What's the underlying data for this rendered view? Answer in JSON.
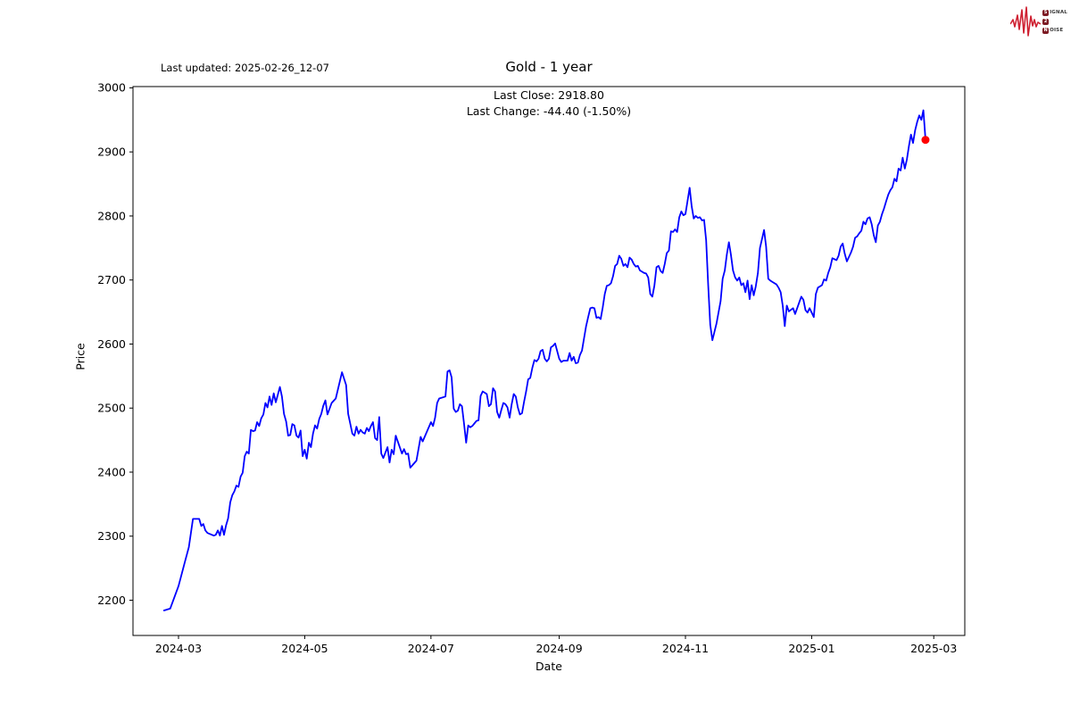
{
  "header": {
    "last_updated": "Last updated: 2025-02-26_12-07"
  },
  "logo": {
    "name": "signal-2-noise",
    "waveform_color": "#cf2233",
    "badge_color": "#7d1b24",
    "rows": [
      {
        "badge": "S",
        "rest": "IGNAL"
      },
      {
        "badge": "2",
        "rest": ""
      },
      {
        "badge": "N",
        "rest": "OISE"
      }
    ]
  },
  "chart_data": {
    "type": "line",
    "title": "Gold - 1 year",
    "annotation_last_close": "Last Close: 2918.80",
    "annotation_last_change": "Last Change: -44.40 (-1.50%)",
    "last_close": 2918.8,
    "last_change": -44.4,
    "last_change_pct": "-1.50%",
    "xlabel": "Date",
    "ylabel": "Price",
    "grid": false,
    "legend": "none",
    "line_color": "#0000ff",
    "marker_color": "#ff0000",
    "ylim": [
      2145,
      3002
    ],
    "xlim": [
      "2024-02-08",
      "2025-03-16"
    ],
    "y_ticks": [
      2200,
      2300,
      2400,
      2500,
      2600,
      2700,
      2800,
      2900,
      3000
    ],
    "x_ticks": [
      {
        "date": "2024-03-01",
        "label": "2024-03"
      },
      {
        "date": "2024-05-01",
        "label": "2024-05"
      },
      {
        "date": "2024-07-01",
        "label": "2024-07"
      },
      {
        "date": "2024-09-01",
        "label": "2024-09"
      },
      {
        "date": "2024-11-01",
        "label": "2024-11"
      },
      {
        "date": "2025-01-01",
        "label": "2025-01"
      },
      {
        "date": "2025-03-01",
        "label": "2025-03"
      }
    ],
    "series_name": "Gold",
    "last_point_marker": {
      "date": "2025-02-25",
      "price": 2918.8
    },
    "points": [
      [
        "2024-02-23",
        2184
      ],
      [
        "2024-02-26",
        2187
      ],
      [
        "2024-03-01",
        2222
      ],
      [
        "2024-03-04",
        2259
      ],
      [
        "2024-03-06",
        2283
      ],
      [
        "2024-03-08",
        2327
      ],
      [
        "2024-03-11",
        2327
      ],
      [
        "2024-03-12",
        2316
      ],
      [
        "2024-03-13",
        2319
      ],
      [
        "2024-03-14",
        2309
      ],
      [
        "2024-03-15",
        2305
      ],
      [
        "2024-03-18",
        2301
      ],
      [
        "2024-03-19",
        2302
      ],
      [
        "2024-03-20",
        2309
      ],
      [
        "2024-03-21",
        2301
      ],
      [
        "2024-03-22",
        2316
      ],
      [
        "2024-03-23",
        2302
      ],
      [
        "2024-03-24",
        2317
      ],
      [
        "2024-03-25",
        2328
      ],
      [
        "2024-03-26",
        2353
      ],
      [
        "2024-03-27",
        2364
      ],
      [
        "2024-03-28",
        2370
      ],
      [
        "2024-03-29",
        2379
      ],
      [
        "2024-03-30",
        2377
      ],
      [
        "2024-03-31",
        2393
      ],
      [
        "2024-04-01",
        2399
      ],
      [
        "2024-04-02",
        2425
      ],
      [
        "2024-04-03",
        2432
      ],
      [
        "2024-04-04",
        2429
      ],
      [
        "2024-04-05",
        2466
      ],
      [
        "2024-04-06",
        2464
      ],
      [
        "2024-04-07",
        2465
      ],
      [
        "2024-04-08",
        2478
      ],
      [
        "2024-04-09",
        2472
      ],
      [
        "2024-04-10",
        2484
      ],
      [
        "2024-04-11",
        2490
      ],
      [
        "2024-04-12",
        2508
      ],
      [
        "2024-04-13",
        2501
      ],
      [
        "2024-04-14",
        2518
      ],
      [
        "2024-04-15",
        2505
      ],
      [
        "2024-04-16",
        2523
      ],
      [
        "2024-04-17",
        2509
      ],
      [
        "2024-04-19",
        2533
      ],
      [
        "2024-04-20",
        2518
      ],
      [
        "2024-04-21",
        2491
      ],
      [
        "2024-04-22",
        2479
      ],
      [
        "2024-04-23",
        2457
      ],
      [
        "2024-04-24",
        2458
      ],
      [
        "2024-04-25",
        2475
      ],
      [
        "2024-04-26",
        2473
      ],
      [
        "2024-04-27",
        2457
      ],
      [
        "2024-04-28",
        2454
      ],
      [
        "2024-04-29",
        2465
      ],
      [
        "2024-04-30",
        2425
      ],
      [
        "2024-05-01",
        2435
      ],
      [
        "2024-05-02",
        2421
      ],
      [
        "2024-05-03",
        2446
      ],
      [
        "2024-05-04",
        2439
      ],
      [
        "2024-05-05",
        2460
      ],
      [
        "2024-05-06",
        2473
      ],
      [
        "2024-05-07",
        2468
      ],
      [
        "2024-05-08",
        2483
      ],
      [
        "2024-05-09",
        2491
      ],
      [
        "2024-05-10",
        2504
      ],
      [
        "2024-05-11",
        2512
      ],
      [
        "2024-05-12",
        2490
      ],
      [
        "2024-05-14",
        2508
      ],
      [
        "2024-05-16",
        2515
      ],
      [
        "2024-05-19",
        2556
      ],
      [
        "2024-05-21",
        2536
      ],
      [
        "2024-05-22",
        2491
      ],
      [
        "2024-05-23",
        2476
      ],
      [
        "2024-05-24",
        2460
      ],
      [
        "2024-05-25",
        2457
      ],
      [
        "2024-05-26",
        2471
      ],
      [
        "2024-05-27",
        2460
      ],
      [
        "2024-05-28",
        2466
      ],
      [
        "2024-05-29",
        2462
      ],
      [
        "2024-05-30",
        2460
      ],
      [
        "2024-05-31",
        2469
      ],
      [
        "2024-06-01",
        2464
      ],
      [
        "2024-06-02",
        2472
      ],
      [
        "2024-06-03",
        2478
      ],
      [
        "2024-06-04",
        2453
      ],
      [
        "2024-06-05",
        2450
      ],
      [
        "2024-06-06",
        2486
      ],
      [
        "2024-06-07",
        2429
      ],
      [
        "2024-06-08",
        2422
      ],
      [
        "2024-06-10",
        2439
      ],
      [
        "2024-06-11",
        2415
      ],
      [
        "2024-06-12",
        2435
      ],
      [
        "2024-06-13",
        2428
      ],
      [
        "2024-06-14",
        2457
      ],
      [
        "2024-06-17",
        2429
      ],
      [
        "2024-06-18",
        2436
      ],
      [
        "2024-06-19",
        2428
      ],
      [
        "2024-06-20",
        2429
      ],
      [
        "2024-06-21",
        2407
      ],
      [
        "2024-06-24",
        2418
      ],
      [
        "2024-06-25",
        2436
      ],
      [
        "2024-06-26",
        2455
      ],
      [
        "2024-06-27",
        2448
      ],
      [
        "2024-07-01",
        2478
      ],
      [
        "2024-07-02",
        2472
      ],
      [
        "2024-07-03",
        2485
      ],
      [
        "2024-07-04",
        2508
      ],
      [
        "2024-07-05",
        2515
      ],
      [
        "2024-07-08",
        2518
      ],
      [
        "2024-07-09",
        2557
      ],
      [
        "2024-07-10",
        2559
      ],
      [
        "2024-07-11",
        2548
      ],
      [
        "2024-07-12",
        2499
      ],
      [
        "2024-07-13",
        2494
      ],
      [
        "2024-07-14",
        2496
      ],
      [
        "2024-07-15",
        2506
      ],
      [
        "2024-07-16",
        2503
      ],
      [
        "2024-07-17",
        2476
      ],
      [
        "2024-07-18",
        2446
      ],
      [
        "2024-07-19",
        2473
      ],
      [
        "2024-07-20",
        2470
      ],
      [
        "2024-07-21",
        2472
      ],
      [
        "2024-07-22",
        2476
      ],
      [
        "2024-07-23",
        2480
      ],
      [
        "2024-07-24",
        2481
      ],
      [
        "2024-07-25",
        2519
      ],
      [
        "2024-07-26",
        2526
      ],
      [
        "2024-07-27",
        2524
      ],
      [
        "2024-07-28",
        2522
      ],
      [
        "2024-07-29",
        2503
      ],
      [
        "2024-07-30",
        2506
      ],
      [
        "2024-07-31",
        2531
      ],
      [
        "2024-08-01",
        2526
      ],
      [
        "2024-08-02",
        2494
      ],
      [
        "2024-08-03",
        2485
      ],
      [
        "2024-08-04",
        2497
      ],
      [
        "2024-08-05",
        2508
      ],
      [
        "2024-08-06",
        2506
      ],
      [
        "2024-08-07",
        2501
      ],
      [
        "2024-08-08",
        2485
      ],
      [
        "2024-08-09",
        2506
      ],
      [
        "2024-08-10",
        2522
      ],
      [
        "2024-08-11",
        2518
      ],
      [
        "2024-08-12",
        2501
      ],
      [
        "2024-08-13",
        2490
      ],
      [
        "2024-08-14",
        2492
      ],
      [
        "2024-08-15",
        2510
      ],
      [
        "2024-08-16",
        2526
      ],
      [
        "2024-08-17",
        2545
      ],
      [
        "2024-08-18",
        2547
      ],
      [
        "2024-08-19",
        2563
      ],
      [
        "2024-08-20",
        2575
      ],
      [
        "2024-08-21",
        2573
      ],
      [
        "2024-08-22",
        2577
      ],
      [
        "2024-08-23",
        2589
      ],
      [
        "2024-08-24",
        2591
      ],
      [
        "2024-08-25",
        2577
      ],
      [
        "2024-08-26",
        2573
      ],
      [
        "2024-08-27",
        2577
      ],
      [
        "2024-08-28",
        2595
      ],
      [
        "2024-08-29",
        2597
      ],
      [
        "2024-08-30",
        2601
      ],
      [
        "2024-09-01",
        2577
      ],
      [
        "2024-09-02",
        2572
      ],
      [
        "2024-09-03",
        2574
      ],
      [
        "2024-09-04",
        2574
      ],
      [
        "2024-09-05",
        2574
      ],
      [
        "2024-09-06",
        2586
      ],
      [
        "2024-09-07",
        2574
      ],
      [
        "2024-09-08",
        2580
      ],
      [
        "2024-09-09",
        2570
      ],
      [
        "2024-09-10",
        2571
      ],
      [
        "2024-09-11",
        2583
      ],
      [
        "2024-09-12",
        2590
      ],
      [
        "2024-09-13",
        2609
      ],
      [
        "2024-09-14",
        2628
      ],
      [
        "2024-09-15",
        2642
      ],
      [
        "2024-09-16",
        2656
      ],
      [
        "2024-09-17",
        2657
      ],
      [
        "2024-09-18",
        2656
      ],
      [
        "2024-09-19",
        2641
      ],
      [
        "2024-09-20",
        2642
      ],
      [
        "2024-09-21",
        2639
      ],
      [
        "2024-09-22",
        2657
      ],
      [
        "2024-09-23",
        2678
      ],
      [
        "2024-09-24",
        2691
      ],
      [
        "2024-09-25",
        2692
      ],
      [
        "2024-09-26",
        2695
      ],
      [
        "2024-09-27",
        2706
      ],
      [
        "2024-09-28",
        2722
      ],
      [
        "2024-09-29",
        2725
      ],
      [
        "2024-09-30",
        2738
      ],
      [
        "2024-10-01",
        2733
      ],
      [
        "2024-10-02",
        2722
      ],
      [
        "2024-10-03",
        2725
      ],
      [
        "2024-10-04",
        2720
      ],
      [
        "2024-10-05",
        2735
      ],
      [
        "2024-10-06",
        2732
      ],
      [
        "2024-10-07",
        2725
      ],
      [
        "2024-10-08",
        2721
      ],
      [
        "2024-10-09",
        2722
      ],
      [
        "2024-10-10",
        2715
      ],
      [
        "2024-10-11",
        2713
      ],
      [
        "2024-10-12",
        2711
      ],
      [
        "2024-10-13",
        2710
      ],
      [
        "2024-10-14",
        2704
      ],
      [
        "2024-10-15",
        2678
      ],
      [
        "2024-10-16",
        2674
      ],
      [
        "2024-10-17",
        2691
      ],
      [
        "2024-10-18",
        2720
      ],
      [
        "2024-10-19",
        2722
      ],
      [
        "2024-10-20",
        2714
      ],
      [
        "2024-10-21",
        2711
      ],
      [
        "2024-10-22",
        2725
      ],
      [
        "2024-10-23",
        2742
      ],
      [
        "2024-10-24",
        2746
      ],
      [
        "2024-10-25",
        2776
      ],
      [
        "2024-10-26",
        2775
      ],
      [
        "2024-10-27",
        2779
      ],
      [
        "2024-10-28",
        2775
      ],
      [
        "2024-10-29",
        2798
      ],
      [
        "2024-10-30",
        2807
      ],
      [
        "2024-10-31",
        2801
      ],
      [
        "2024-11-01",
        2803
      ],
      [
        "2024-11-02",
        2823
      ],
      [
        "2024-11-03",
        2844
      ],
      [
        "2024-11-04",
        2815
      ],
      [
        "2024-11-05",
        2796
      ],
      [
        "2024-11-06",
        2800
      ],
      [
        "2024-11-07",
        2797
      ],
      [
        "2024-11-08",
        2798
      ],
      [
        "2024-11-09",
        2793
      ],
      [
        "2024-11-10",
        2794
      ],
      [
        "2024-11-11",
        2762
      ],
      [
        "2024-11-12",
        2692
      ],
      [
        "2024-11-13",
        2630
      ],
      [
        "2024-11-14",
        2606
      ],
      [
        "2024-11-15",
        2619
      ],
      [
        "2024-11-16",
        2632
      ],
      [
        "2024-11-18",
        2667
      ],
      [
        "2024-11-19",
        2702
      ],
      [
        "2024-11-20",
        2715
      ],
      [
        "2024-11-21",
        2740
      ],
      [
        "2024-11-22",
        2759
      ],
      [
        "2024-11-23",
        2739
      ],
      [
        "2024-11-24",
        2715
      ],
      [
        "2024-11-25",
        2704
      ],
      [
        "2024-11-26",
        2699
      ],
      [
        "2024-11-27",
        2704
      ],
      [
        "2024-11-28",
        2692
      ],
      [
        "2024-11-29",
        2695
      ],
      [
        "2024-11-30",
        2681
      ],
      [
        "2024-12-01",
        2699
      ],
      [
        "2024-12-02",
        2670
      ],
      [
        "2024-12-03",
        2692
      ],
      [
        "2024-12-04",
        2676
      ],
      [
        "2024-12-05",
        2690
      ],
      [
        "2024-12-06",
        2711
      ],
      [
        "2024-12-07",
        2750
      ],
      [
        "2024-12-09",
        2778
      ],
      [
        "2024-12-10",
        2752
      ],
      [
        "2024-12-11",
        2702
      ],
      [
        "2024-12-12",
        2699
      ],
      [
        "2024-12-13",
        2697
      ],
      [
        "2024-12-15",
        2693
      ],
      [
        "2024-12-16",
        2688
      ],
      [
        "2024-12-17",
        2681
      ],
      [
        "2024-12-18",
        2660
      ],
      [
        "2024-12-19",
        2628
      ],
      [
        "2024-12-20",
        2660
      ],
      [
        "2024-12-21",
        2651
      ],
      [
        "2024-12-23",
        2656
      ],
      [
        "2024-12-24",
        2647
      ],
      [
        "2024-12-26",
        2665
      ],
      [
        "2024-12-27",
        2674
      ],
      [
        "2024-12-28",
        2669
      ],
      [
        "2024-12-29",
        2653
      ],
      [
        "2024-12-30",
        2649
      ],
      [
        "2024-12-31",
        2656
      ],
      [
        "2025-01-02",
        2642
      ],
      [
        "2025-01-03",
        2678
      ],
      [
        "2025-01-04",
        2688
      ],
      [
        "2025-01-06",
        2692
      ],
      [
        "2025-01-07",
        2701
      ],
      [
        "2025-01-08",
        2699
      ],
      [
        "2025-01-09",
        2711
      ],
      [
        "2025-01-10",
        2720
      ],
      [
        "2025-01-11",
        2734
      ],
      [
        "2025-01-13",
        2731
      ],
      [
        "2025-01-14",
        2738
      ],
      [
        "2025-01-15",
        2752
      ],
      [
        "2025-01-16",
        2757
      ],
      [
        "2025-01-17",
        2741
      ],
      [
        "2025-01-18",
        2729
      ],
      [
        "2025-01-20",
        2743
      ],
      [
        "2025-01-21",
        2752
      ],
      [
        "2025-01-22",
        2766
      ],
      [
        "2025-01-23",
        2768
      ],
      [
        "2025-01-24",
        2773
      ],
      [
        "2025-01-25",
        2777
      ],
      [
        "2025-01-26",
        2791
      ],
      [
        "2025-01-27",
        2787
      ],
      [
        "2025-01-28",
        2796
      ],
      [
        "2025-01-29",
        2798
      ],
      [
        "2025-01-30",
        2787
      ],
      [
        "2025-01-31",
        2770
      ],
      [
        "2025-02-01",
        2759
      ],
      [
        "2025-02-02",
        2785
      ],
      [
        "2025-02-03",
        2791
      ],
      [
        "2025-02-04",
        2803
      ],
      [
        "2025-02-05",
        2812
      ],
      [
        "2025-02-06",
        2823
      ],
      [
        "2025-02-07",
        2833
      ],
      [
        "2025-02-08",
        2840
      ],
      [
        "2025-02-09",
        2845
      ],
      [
        "2025-02-10",
        2858
      ],
      [
        "2025-02-11",
        2854
      ],
      [
        "2025-02-12",
        2874
      ],
      [
        "2025-02-13",
        2871
      ],
      [
        "2025-02-14",
        2891
      ],
      [
        "2025-02-15",
        2874
      ],
      [
        "2025-02-16",
        2888
      ],
      [
        "2025-02-17",
        2909
      ],
      [
        "2025-02-18",
        2927
      ],
      [
        "2025-02-19",
        2914
      ],
      [
        "2025-02-20",
        2934
      ],
      [
        "2025-02-21",
        2947
      ],
      [
        "2025-02-22",
        2957
      ],
      [
        "2025-02-23",
        2950
      ],
      [
        "2025-02-24",
        2965
      ],
      [
        "2025-02-25",
        2918.8
      ]
    ]
  }
}
